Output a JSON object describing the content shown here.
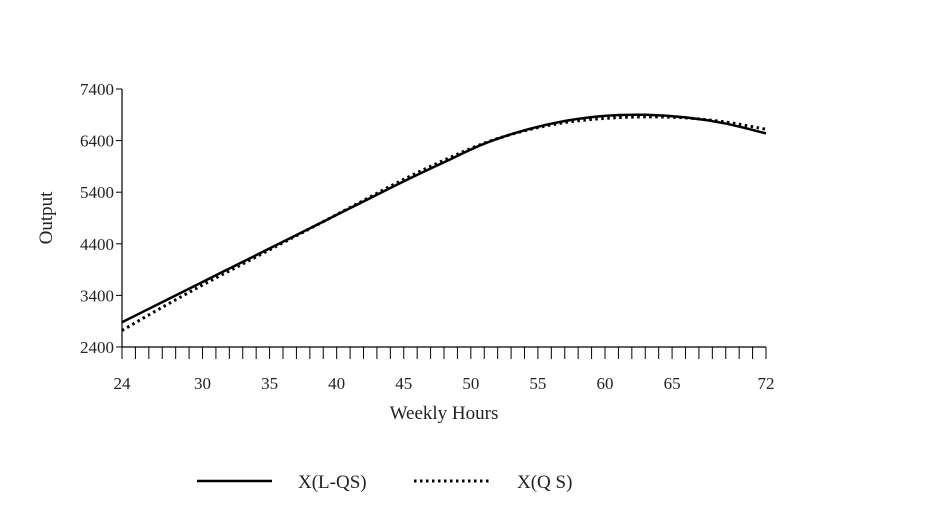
{
  "chart_data": {
    "type": "line",
    "title": "",
    "xlabel": "Weekly Hours",
    "ylabel": "Output",
    "xlim": [
      24,
      72
    ],
    "ylim": [
      2400,
      7400
    ],
    "x_ticks": [
      24,
      30,
      35,
      40,
      45,
      50,
      55,
      60,
      65,
      72
    ],
    "y_ticks": [
      2400,
      3400,
      4400,
      5400,
      6400,
      7400
    ],
    "minor_x_step": 1,
    "grid": false,
    "legend": "bottom",
    "series": [
      {
        "name": "X(L-QS)",
        "style": "solid",
        "color": "#000000",
        "x": [
          24,
          27,
          30,
          33,
          36,
          39,
          42,
          45,
          48,
          51,
          54,
          57,
          60,
          63,
          66,
          69,
          72
        ],
        "y": [
          2880,
          3270,
          3660,
          4050,
          4440,
          4830,
          5220,
          5610,
          5980,
          6340,
          6600,
          6780,
          6880,
          6900,
          6850,
          6730,
          6540
        ]
      },
      {
        "name": "X(Q S)",
        "style": "dotted",
        "color": "#000000",
        "x": [
          24,
          27,
          30,
          33,
          36,
          39,
          42,
          45,
          48,
          51,
          54,
          57,
          60,
          63,
          66,
          69,
          72
        ],
        "y": [
          2720,
          3170,
          3600,
          4010,
          4420,
          4830,
          5240,
          5650,
          6020,
          6350,
          6590,
          6750,
          6830,
          6860,
          6840,
          6760,
          6620
        ]
      }
    ]
  }
}
